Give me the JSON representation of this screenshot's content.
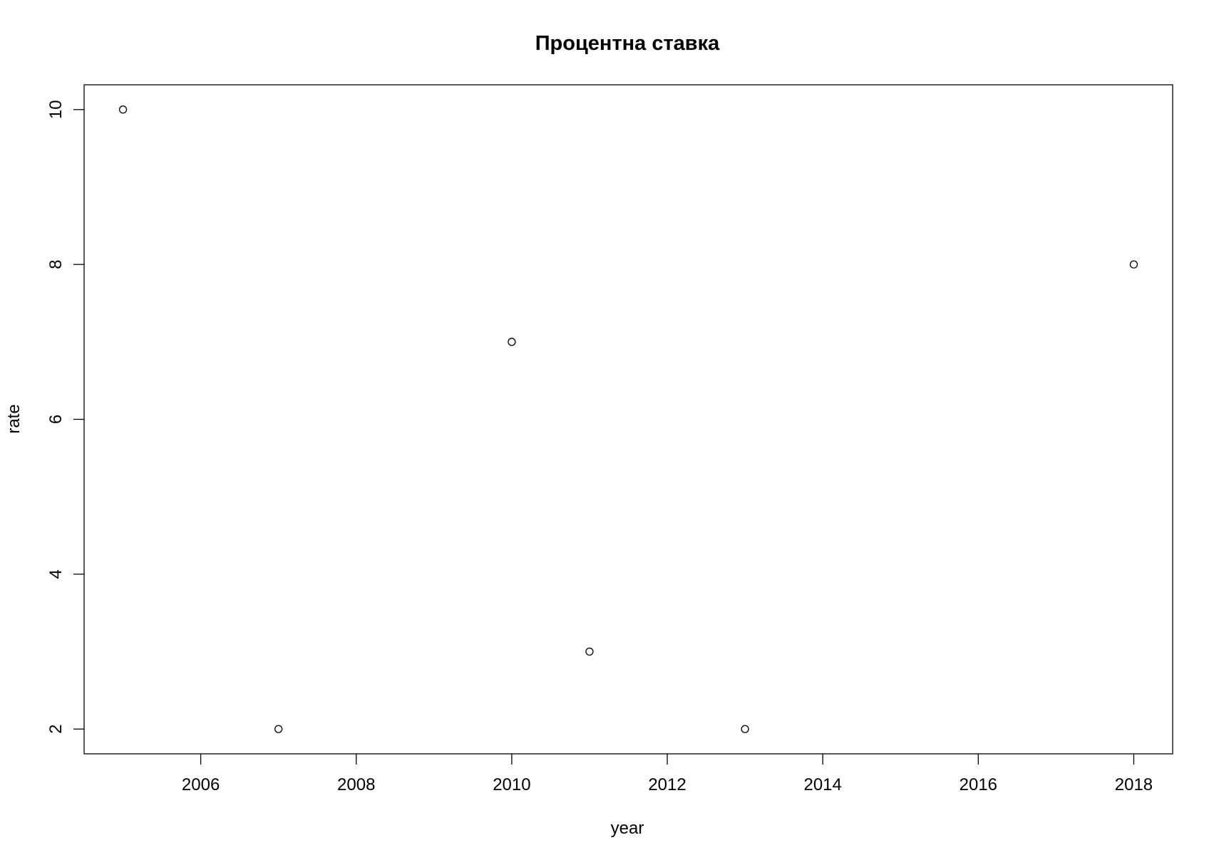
{
  "chart_data": {
    "type": "scatter",
    "title": "Процентна ставка",
    "xlabel": "year",
    "ylabel": "rate",
    "x": [
      2005,
      2007,
      2010,
      2011,
      2013,
      2018
    ],
    "y": [
      10,
      2,
      7,
      3,
      2,
      8
    ],
    "xlim": [
      2004.5,
      2018.5
    ],
    "ylim": [
      1.68,
      10.32
    ],
    "x_ticks": [
      2006,
      2008,
      2010,
      2012,
      2014,
      2016,
      2018
    ],
    "y_ticks": [
      2,
      4,
      6,
      8,
      10
    ],
    "grid": false,
    "legend": "none",
    "marker": "open-circle",
    "colors": {
      "marks": "#000000",
      "background": "#ffffff"
    }
  }
}
